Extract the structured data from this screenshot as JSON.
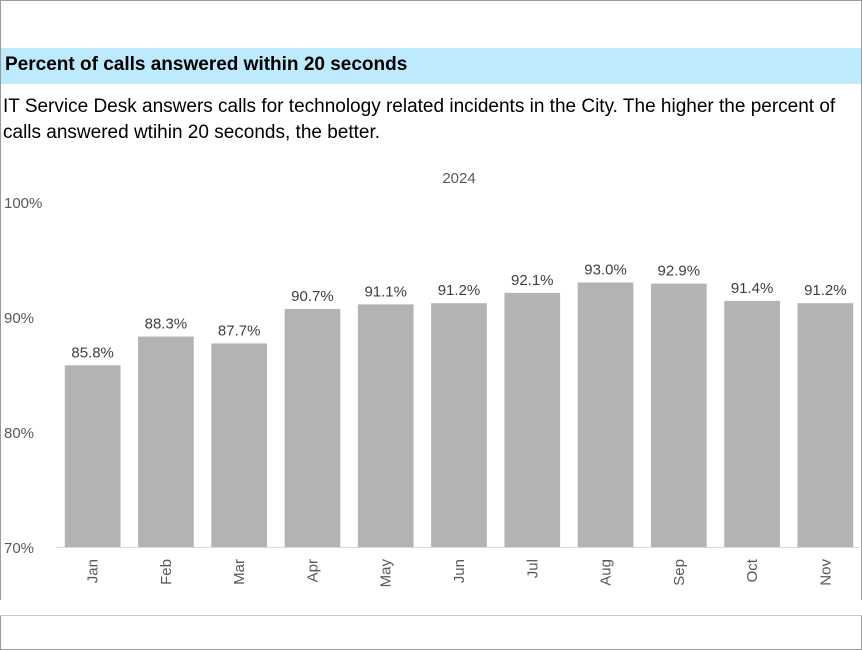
{
  "header": {
    "title": "Percent of calls answered within 20 seconds",
    "description": "IT Service Desk answers calls for technology related incidents in the City. The higher the percent of calls answered wtihin 20 seconds, the better."
  },
  "chart_data": {
    "type": "bar",
    "title": "2024",
    "xlabel": "",
    "ylabel": "",
    "categories": [
      "Jan",
      "Feb",
      "Mar",
      "Apr",
      "May",
      "Jun",
      "Jul",
      "Aug",
      "Sep",
      "Oct",
      "Nov"
    ],
    "values": [
      85.8,
      88.3,
      87.7,
      90.7,
      91.1,
      91.2,
      92.1,
      93.0,
      92.9,
      91.4,
      91.2
    ],
    "data_labels": [
      "85.8%",
      "88.3%",
      "87.7%",
      "90.7%",
      "91.1%",
      "91.2%",
      "92.1%",
      "93.0%",
      "92.9%",
      "91.4%",
      "91.2%"
    ],
    "ylim": [
      70,
      100
    ],
    "yticks": [
      70,
      80,
      90,
      100
    ],
    "ytick_labels": [
      "70%",
      "80%",
      "90%",
      "100%"
    ],
    "grid": false,
    "legend": "none",
    "bar_color": "#b3b3b3",
    "label_color": "#404040",
    "axis_text_color": "#595959"
  }
}
